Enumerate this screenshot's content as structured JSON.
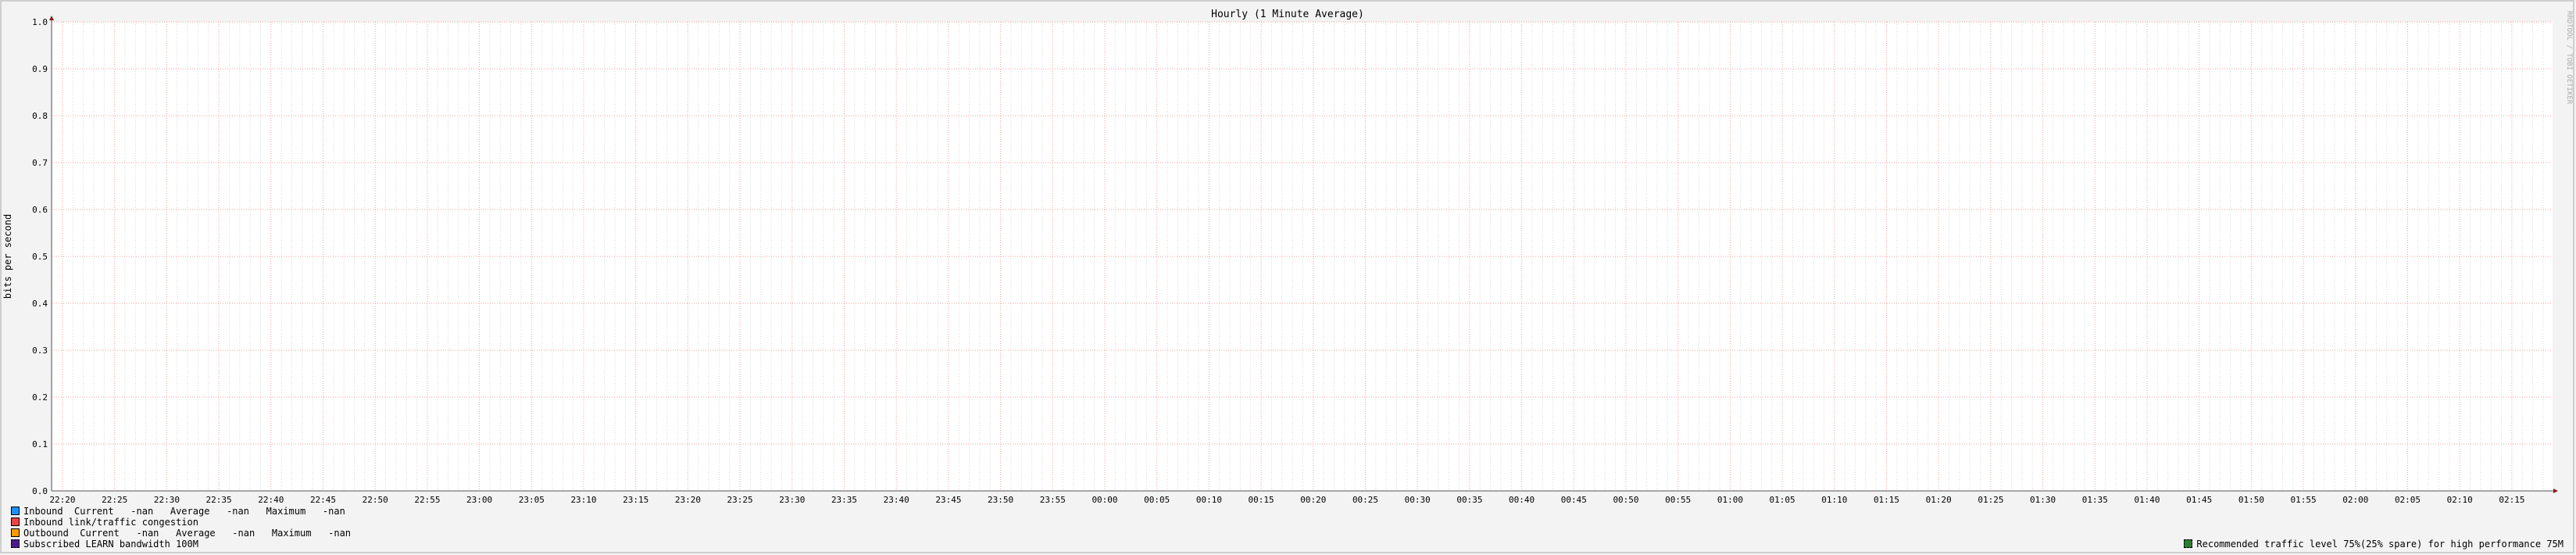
{
  "chart_data": {
    "type": "line",
    "title": "Hourly (1 Minute Average)",
    "ylabel": "bits per second",
    "xlabel": "",
    "ylim": [
      0,
      1.0
    ],
    "y_ticks": [
      "0.0",
      "0.1",
      "0.2",
      "0.3",
      "0.4",
      "0.5",
      "0.6",
      "0.7",
      "0.8",
      "0.9",
      "1.0"
    ],
    "x_ticks": [
      "22:20",
      "22:25",
      "22:30",
      "22:35",
      "22:40",
      "22:45",
      "22:50",
      "22:55",
      "23:00",
      "23:05",
      "23:10",
      "23:15",
      "23:20",
      "23:25",
      "23:30",
      "23:35",
      "23:40",
      "23:45",
      "23:50",
      "23:55",
      "00:00",
      "00:05",
      "00:10",
      "00:15",
      "00:20",
      "00:25",
      "00:30",
      "00:35",
      "00:40",
      "00:45",
      "00:50",
      "00:55",
      "01:00",
      "01:05",
      "01:10",
      "01:15",
      "01:20",
      "01:25",
      "01:30",
      "01:35",
      "01:40",
      "01:45",
      "01:50",
      "01:55",
      "02:00",
      "02:05",
      "02:10",
      "02:15"
    ],
    "grid": true,
    "series": [],
    "watermark": "RRDTOOL / TOBI OETIKER"
  },
  "legend": [
    {
      "label": "Inbound  Current   -nan   Average   -nan   Maximum   -nan",
      "color": "#1e90ff"
    },
    {
      "label": "Inbound link/traffic congestion",
      "color": "#ee4444"
    },
    {
      "label": "Outbound  Current   -nan   Average   -nan   Maximum   -nan",
      "color": "#ff9900"
    },
    {
      "label": "Subscribed LEARN bandwidth 100M",
      "color": "#4b1a8a"
    },
    {
      "label": "Recommended traffic level 75%(25% spare) for high performance 75M",
      "color": "#2e7d32"
    }
  ],
  "colors": {
    "major_grid": "#f4a0a0",
    "minor_grid": "#d8d8d8",
    "axis": "#555555",
    "arrow": "#8b1a1a",
    "background": "#f3f3f3",
    "canvas": "#ffffff"
  }
}
